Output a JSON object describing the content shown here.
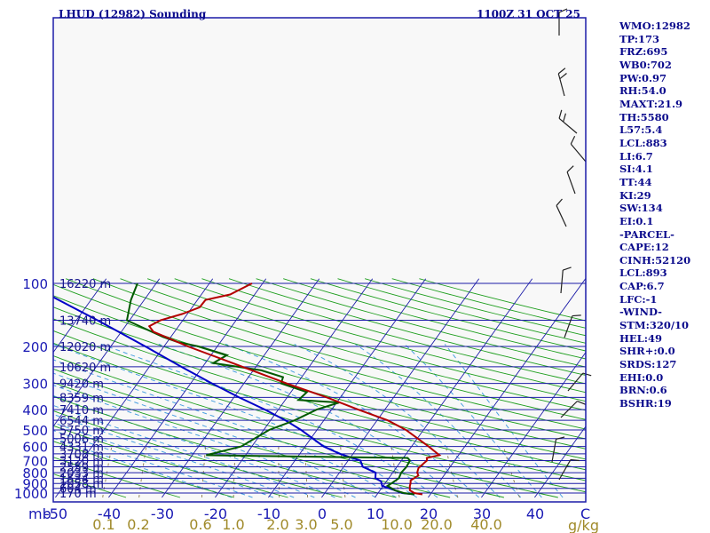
{
  "header": {
    "left": "LHUD (12982) Sounding",
    "right": "1100Z 31 OCT 25"
  },
  "stats": [
    "WMO:12982",
    "TP:173",
    "FRZ:695",
    "WB0:702",
    "PW:0.97",
    "RH:54.0",
    "MAXT:21.9",
    "TH:5580",
    "L57:5.4",
    "LCL:883",
    "LI:6.7",
    "SI:4.1",
    "TT:44",
    "KI:29",
    "SW:134",
    "EI:0.1",
    "-PARCEL-",
    "CAPE:12",
    "CINH:52120",
    "LCL:893",
    "CAP:6.7",
    "LFC:-1",
    "-WIND-",
    "STM:320/10",
    "HEL:49",
    "SHR+:0.0",
    "SRDS:127",
    "EHI:0.0",
    "BRN:0.6",
    "BSHR:19"
  ],
  "colors": {
    "isobar": "#1c1ca8",
    "isotherm": "#1c1ca8",
    "dry_adiabat": "#1e9e1e",
    "moist_adiabat": "#4aa0e0",
    "mixing_ratio": "#8a7a4a",
    "temperature": "#b40000",
    "dewpoint": "#005a00",
    "parcel": "#0000c8",
    "wind_barb": "#222222"
  },
  "chart_data": {
    "type": "skew-t",
    "title": "LHUD (12982) Sounding",
    "pressure_unit": "mb",
    "temperature_unit": "C",
    "mixing_ratio_unit": "g/kg",
    "pressure_ticks": [
      100,
      200,
      300,
      400,
      500,
      600,
      700,
      800,
      900,
      1000
    ],
    "temperature_ticks": [
      -50,
      -40,
      -30,
      -20,
      -10,
      0,
      10,
      20,
      30,
      40
    ],
    "temperature_tick_labels": [
      "-50",
      "-40",
      "-30",
      "-20",
      "-10",
      "0",
      "10",
      "20",
      "30",
      "40"
    ],
    "mixing_ratio_labels": [
      "0.1",
      "0.2",
      "0.6",
      "1.0",
      "2.0",
      "3.0",
      "5.0",
      "10.0",
      "20.0",
      "40.0"
    ],
    "height_levels": [
      {
        "p": 100,
        "label": "16220 m"
      },
      {
        "p": 150,
        "label": "13740 m"
      },
      {
        "p": 200,
        "label": "12020 m"
      },
      {
        "p": 250,
        "label": "10620 m"
      },
      {
        "p": 300,
        "label": "9420 m"
      },
      {
        "p": 350,
        "label": "8359 m"
      },
      {
        "p": 400,
        "label": "7410 m"
      },
      {
        "p": 450,
        "label": "6544 m"
      },
      {
        "p": 500,
        "label": "5750 m"
      },
      {
        "p": 550,
        "label": "5006 m"
      },
      {
        "p": 600,
        "label": "4331 m"
      },
      {
        "p": 650,
        "label": "3708 m"
      },
      {
        "p": 700,
        "label": "3120 m"
      },
      {
        "p": 750,
        "label": "2559 m"
      },
      {
        "p": 800,
        "label": "2033 m"
      },
      {
        "p": 850,
        "label": "1534 m"
      },
      {
        "p": 900,
        "label": "1058 m"
      },
      {
        "p": 950,
        "label": "604 m"
      },
      {
        "p": 1000,
        "label": "170 m"
      }
    ],
    "temperature_profile": [
      [
        1015,
        18.5
      ],
      [
        1000,
        16.8
      ],
      [
        970,
        15.6
      ],
      [
        925,
        15.0
      ],
      [
        900,
        14.8
      ],
      [
        870,
        14.4
      ],
      [
        850,
        14.8
      ],
      [
        825,
        15.2
      ],
      [
        800,
        14.6
      ],
      [
        760,
        14.2
      ],
      [
        720,
        14.6
      ],
      [
        700,
        14.8
      ],
      [
        680,
        14.4
      ],
      [
        660,
        16.4
      ],
      [
        600,
        13.2
      ],
      [
        500,
        6.7
      ],
      [
        450,
        2.0
      ],
      [
        400,
        -5.0
      ],
      [
        350,
        -12.5
      ],
      [
        300,
        -22.0
      ],
      [
        250,
        -32.5
      ],
      [
        200,
        -45.5
      ],
      [
        170,
        -54.0
      ],
      [
        160,
        -55.5
      ],
      [
        150,
        -54.2
      ],
      [
        140,
        -51.0
      ],
      [
        130,
        -48.6
      ],
      [
        120,
        -48.5
      ],
      [
        113,
        -44.6
      ],
      [
        100,
        -42.0
      ]
    ],
    "dewpoint_profile": [
      [
        1015,
        17.0
      ],
      [
        1000,
        14.8
      ],
      [
        970,
        12.8
      ],
      [
        925,
        10.8
      ],
      [
        900,
        11.2
      ],
      [
        850,
        11.9
      ],
      [
        800,
        11.6
      ],
      [
        750,
        11.8
      ],
      [
        700,
        11.6
      ],
      [
        680,
        10.8
      ],
      [
        670,
        -8.3
      ],
      [
        660,
        -27.4
      ],
      [
        600,
        -22.0
      ],
      [
        500,
        -19.0
      ],
      [
        450,
        -15.5
      ],
      [
        400,
        -12.8
      ],
      [
        370,
        -9.5
      ],
      [
        360,
        -17.5
      ],
      [
        330,
        -17.0
      ],
      [
        300,
        -23.0
      ],
      [
        280,
        -23.5
      ],
      [
        260,
        -28.5
      ],
      [
        240,
        -38.5
      ],
      [
        220,
        -37.0
      ],
      [
        200,
        -43.5
      ],
      [
        190,
        -48.2
      ],
      [
        180,
        -51.5
      ],
      [
        150,
        -60.5
      ],
      [
        120,
        -62.5
      ],
      [
        100,
        -63.5
      ]
    ],
    "parcel_profile": [
      [
        1015,
        17.0
      ],
      [
        1000,
        14.5
      ],
      [
        970,
        12.8
      ],
      [
        925,
        9.8
      ],
      [
        880,
        9.0
      ],
      [
        850,
        7.5
      ],
      [
        800,
        6.8
      ],
      [
        750,
        3.6
      ],
      [
        700,
        2.3
      ],
      [
        650,
        -2.5
      ],
      [
        600,
        -6.5
      ],
      [
        500,
        -13.0
      ],
      [
        450,
        -17.2
      ],
      [
        400,
        -22.5
      ],
      [
        350,
        -29.0
      ],
      [
        300,
        -36.0
      ],
      [
        250,
        -44.0
      ],
      [
        200,
        -53.5
      ],
      [
        150,
        -66.0
      ],
      [
        115,
        -78.0
      ],
      [
        100,
        -82.5
      ]
    ],
    "grid": true
  }
}
